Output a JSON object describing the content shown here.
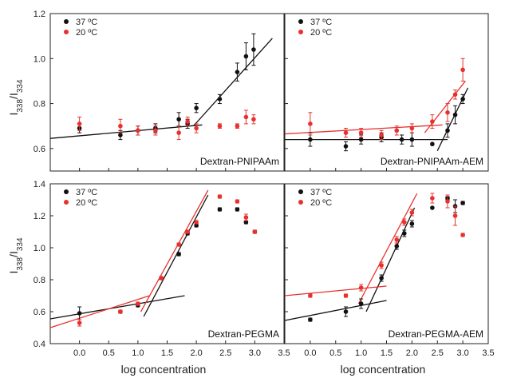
{
  "figure": {
    "ylabel_main": "I",
    "ylabel_sub1": "338",
    "ylabel_mid": "/I",
    "ylabel_sub2": "334",
    "xlabel": "log concentration"
  },
  "colors": {
    "black_series": "#111111",
    "red_series": "#e8312f",
    "axis": "#222222"
  },
  "chart_data": [
    {
      "type": "scatter",
      "title": "Dextran-PNIPAAm",
      "legend": [
        "37 ºC",
        "20 ºC"
      ],
      "legend_placement": "top-left",
      "xlim": [
        -0.5,
        3.5
      ],
      "ylim": [
        0.5,
        1.2
      ],
      "xticks": [],
      "yticks": [
        "0.6",
        "0.8",
        "1.0",
        "1.2"
      ],
      "series": [
        {
          "name": "37 ºC",
          "color": "#111111",
          "x": [
            0.0,
            0.7,
            1.0,
            1.3,
            1.7,
            1.85,
            2.0,
            2.4,
            2.7,
            2.85,
            2.98
          ],
          "y": [
            0.69,
            0.66,
            0.68,
            0.69,
            0.73,
            0.71,
            0.78,
            0.82,
            0.94,
            1.01,
            1.04
          ],
          "err": [
            0.02,
            0.02,
            0.02,
            0.02,
            0.03,
            0.02,
            0.02,
            0.02,
            0.04,
            0.06,
            0.07
          ]
        },
        {
          "name": "20 ºC",
          "color": "#e8312f",
          "x": [
            0.0,
            0.7,
            1.0,
            1.3,
            1.7,
            1.85,
            2.0,
            2.4,
            2.7,
            2.85,
            2.98
          ],
          "y": [
            0.71,
            0.7,
            0.68,
            0.68,
            0.67,
            0.72,
            0.69,
            0.7,
            0.7,
            0.74,
            0.73
          ],
          "err": [
            0.03,
            0.03,
            0.02,
            0.02,
            0.03,
            0.02,
            0.02,
            0.01,
            0.01,
            0.03,
            0.02
          ]
        }
      ],
      "fit_lines": [
        {
          "color": "#111111",
          "points": [
            [
              -0.5,
              0.645
            ],
            [
              2.1,
              0.705
            ]
          ]
        },
        {
          "color": "#111111",
          "points": [
            [
              1.95,
              0.7
            ],
            [
              3.3,
              1.09
            ]
          ]
        }
      ]
    },
    {
      "type": "scatter",
      "title": "Dextran-PNIPAAm-AEM",
      "legend": [
        "37 ºC",
        "20 ºC"
      ],
      "legend_placement": "top-left",
      "xlim": [
        -0.5,
        3.5
      ],
      "ylim": [
        0.5,
        1.2
      ],
      "xticks": [],
      "yticks": [],
      "series": [
        {
          "name": "37 ºC",
          "color": "#111111",
          "x": [
            0.0,
            0.7,
            1.0,
            1.4,
            1.8,
            2.0,
            2.4,
            2.7,
            2.85,
            3.0
          ],
          "y": [
            0.64,
            0.61,
            0.64,
            0.65,
            0.64,
            0.64,
            0.62,
            0.68,
            0.75,
            0.82
          ],
          "err": [
            0.03,
            0.02,
            0.02,
            0.02,
            0.02,
            0.03,
            0.0,
            0.03,
            0.04,
            0.02
          ]
        },
        {
          "name": "20 ºC",
          "color": "#e8312f",
          "x": [
            0.0,
            0.7,
            1.0,
            1.4,
            1.7,
            2.0,
            2.4,
            2.7,
            2.85,
            3.0
          ],
          "y": [
            0.71,
            0.67,
            0.67,
            0.66,
            0.68,
            0.69,
            0.72,
            0.76,
            0.84,
            0.95
          ],
          "err": [
            0.05,
            0.02,
            0.02,
            0.02,
            0.02,
            0.02,
            0.03,
            0.04,
            0.02,
            0.05
          ]
        }
      ],
      "fit_lines": [
        {
          "color": "#111111",
          "points": [
            [
              -0.5,
              0.64
            ],
            [
              2.7,
              0.64
            ]
          ]
        },
        {
          "color": "#111111",
          "points": [
            [
              2.5,
              0.59
            ],
            [
              3.1,
              0.87
            ]
          ]
        },
        {
          "color": "#e8312f",
          "points": [
            [
              -0.5,
              0.665
            ],
            [
              2.6,
              0.705
            ]
          ]
        },
        {
          "color": "#e8312f",
          "points": [
            [
              2.25,
              0.67
            ],
            [
              3.05,
              0.9
            ]
          ]
        }
      ]
    },
    {
      "type": "scatter",
      "title": "Dextran-PEGMA",
      "legend": [
        "37 ºC",
        "20 ºC"
      ],
      "legend_placement": "top-left",
      "xlim": [
        -0.5,
        3.5
      ],
      "ylim": [
        0.4,
        1.4
      ],
      "xticks": [
        "0.0",
        "0.5",
        "1.0",
        "1.5",
        "2.0",
        "2.5",
        "3.0",
        "3.5"
      ],
      "yticks": [
        "0.4",
        "0.6",
        "0.8",
        "1.0",
        "1.2",
        "1.4"
      ],
      "series": [
        {
          "name": "37 ºC",
          "color": "#111111",
          "x": [
            0.0,
            0.7,
            1.0,
            1.4,
            1.7,
            1.85,
            2.0,
            2.4,
            2.7,
            2.85,
            3.0
          ],
          "y": [
            0.59,
            0.6,
            0.64,
            0.81,
            0.96,
            1.09,
            1.14,
            1.24,
            1.24,
            1.16,
            1.1
          ],
          "err": [
            0.04,
            0.01,
            0.01,
            0.01,
            0.01,
            0.01,
            0.01,
            0.01,
            0.01,
            0.01,
            0.01
          ]
        },
        {
          "name": "20 ºC",
          "color": "#e8312f",
          "x": [
            0.0,
            0.7,
            1.0,
            1.4,
            1.7,
            1.85,
            2.0,
            2.4,
            2.7,
            2.85,
            3.0
          ],
          "y": [
            0.53,
            0.6,
            0.65,
            0.81,
            1.02,
            1.1,
            1.16,
            1.32,
            1.29,
            1.19,
            1.1
          ],
          "err": [
            0.02,
            0.01,
            0.01,
            0.01,
            0.01,
            0.01,
            0.01,
            0.01,
            0.01,
            0.02,
            0.01
          ]
        }
      ],
      "fit_lines": [
        {
          "color": "#111111",
          "points": [
            [
              -0.5,
              0.555
            ],
            [
              1.8,
              0.7
            ]
          ]
        },
        {
          "color": "#111111",
          "points": [
            [
              1.1,
              0.57
            ],
            [
              2.2,
              1.33
            ]
          ]
        },
        {
          "color": "#e8312f",
          "points": [
            [
              -0.5,
              0.5
            ],
            [
              1.2,
              0.7
            ]
          ]
        },
        {
          "color": "#e8312f",
          "points": [
            [
              1.05,
              0.6
            ],
            [
              2.2,
              1.36
            ]
          ]
        }
      ]
    },
    {
      "type": "scatter",
      "title": "Dextran-PEGMA-AEM",
      "legend": [
        "37 ºC",
        "20 ºC"
      ],
      "legend_placement": "top-left",
      "xlim": [
        -0.5,
        3.5
      ],
      "ylim": [
        0.4,
        1.4
      ],
      "xticks": [
        "0.0",
        "0.5",
        "1.0",
        "1.5",
        "2.0",
        "2.5",
        "3.0",
        "3.5"
      ],
      "yticks": [],
      "series": [
        {
          "name": "37 ºC",
          "color": "#111111",
          "x": [
            0.0,
            0.7,
            1.0,
            1.4,
            1.7,
            1.85,
            2.0,
            2.4,
            2.7,
            2.85,
            3.0
          ],
          "y": [
            0.55,
            0.6,
            0.65,
            0.81,
            1.01,
            1.09,
            1.15,
            1.25,
            1.31,
            1.26,
            1.28
          ],
          "err": [
            0.01,
            0.03,
            0.03,
            0.02,
            0.02,
            0.02,
            0.02,
            0.0,
            0.01,
            0.04,
            0.01
          ]
        },
        {
          "name": "20 ºC",
          "color": "#e8312f",
          "x": [
            0.0,
            0.7,
            1.0,
            1.4,
            1.7,
            1.85,
            2.0,
            2.4,
            2.7,
            2.85,
            3.0
          ],
          "y": [
            0.7,
            0.7,
            0.75,
            0.89,
            1.05,
            1.16,
            1.22,
            1.31,
            1.29,
            1.2,
            1.08
          ],
          "err": [
            0.01,
            0.01,
            0.02,
            0.02,
            0.02,
            0.02,
            0.02,
            0.03,
            0.04,
            0.06,
            0.01
          ]
        }
      ],
      "fit_lines": [
        {
          "color": "#111111",
          "points": [
            [
              -0.5,
              0.545
            ],
            [
              1.5,
              0.67
            ]
          ]
        },
        {
          "color": "#111111",
          "points": [
            [
              1.1,
              0.6
            ],
            [
              2.05,
              1.25
            ]
          ]
        },
        {
          "color": "#e8312f",
          "points": [
            [
              -0.5,
              0.7
            ],
            [
              1.5,
              0.76
            ]
          ]
        },
        {
          "color": "#e8312f",
          "points": [
            [
              0.95,
              0.65
            ],
            [
              2.1,
              1.34
            ]
          ]
        }
      ]
    }
  ]
}
